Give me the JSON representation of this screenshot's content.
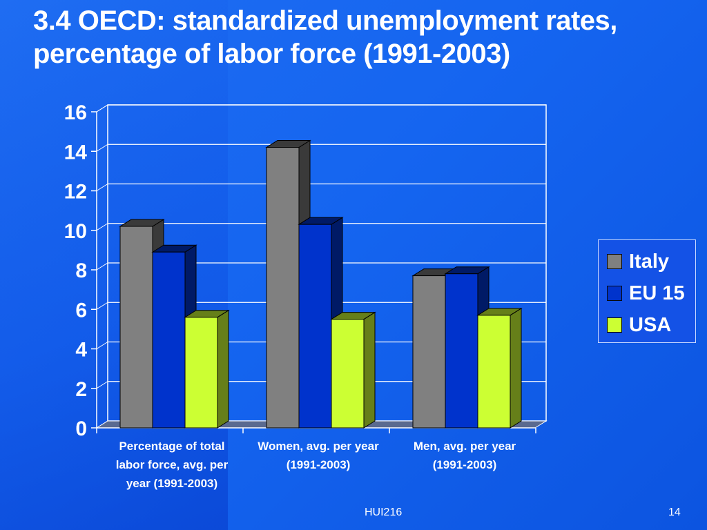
{
  "slide": {
    "title_line1": "3.4 OECD: standardized unemployment rates,",
    "title_line2": "percentage of labor force (1991-2003)",
    "footer_center": "HUI216",
    "page_number": "14",
    "background_color": "#1565f0"
  },
  "chart_data": {
    "type": "bar",
    "style": "3d-clustered",
    "title": "",
    "xlabel": "",
    "ylabel": "",
    "ylim": [
      0,
      16
    ],
    "yticks": [
      0,
      2,
      4,
      6,
      8,
      10,
      12,
      14,
      16
    ],
    "grid": true,
    "legend_position": "right",
    "categories": [
      [
        "Percentage of total",
        "labor force, avg. per",
        "year (1991-2003)"
      ],
      [
        "Women, avg. per year",
        "(1991-2003)"
      ],
      [
        "Men, avg. per year",
        "(1991-2003)"
      ]
    ],
    "series": [
      {
        "name": "Italy",
        "values": [
          10.2,
          14.2,
          7.7
        ],
        "color": "#808080",
        "side_color": "#3a3a3a"
      },
      {
        "name": "EU 15",
        "values": [
          8.9,
          10.3,
          7.8
        ],
        "color": "#0033cc",
        "side_color": "#001a66"
      },
      {
        "name": "USA",
        "values": [
          5.6,
          5.5,
          5.7
        ],
        "color": "#ccff33",
        "side_color": "#667f19"
      }
    ]
  }
}
